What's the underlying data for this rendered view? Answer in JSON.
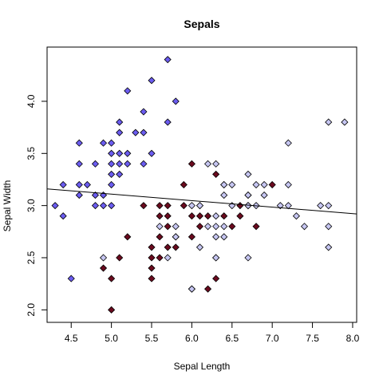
{
  "chart_data": {
    "type": "scatter",
    "title": "Sepals",
    "xlabel": "Sepal Length",
    "ylabel": "Sepal Width",
    "xlim": [
      4.2,
      8.05
    ],
    "ylim": [
      1.88,
      4.52
    ],
    "x_ticks": [
      "4.5",
      "5.0",
      "5.5",
      "6.0",
      "6.5",
      "7.0",
      "7.5",
      "8.0"
    ],
    "y_ticks": [
      "2.0",
      "2.5",
      "3.0",
      "3.5",
      "4.0"
    ],
    "grid": false,
    "legend": "none",
    "regression_line": {
      "x": [
        4.2,
        8.05
      ],
      "y": [
        3.16,
        2.92
      ]
    },
    "series": [
      {
        "color": "#6b5cf0",
        "points": [
          [
            4.3,
            3.0
          ],
          [
            4.4,
            2.9
          ],
          [
            4.4,
            3.2
          ],
          [
            4.5,
            2.3
          ],
          [
            4.6,
            3.1
          ],
          [
            4.6,
            3.2
          ],
          [
            4.6,
            3.4
          ],
          [
            4.6,
            3.6
          ],
          [
            4.7,
            3.2
          ],
          [
            4.8,
            3.0
          ],
          [
            4.8,
            3.1
          ],
          [
            4.8,
            3.4
          ],
          [
            4.9,
            3.0
          ],
          [
            4.9,
            3.1
          ],
          [
            4.9,
            3.6
          ],
          [
            5.0,
            3.0
          ],
          [
            5.0,
            3.2
          ],
          [
            5.0,
            3.3
          ],
          [
            5.0,
            3.4
          ],
          [
            5.0,
            3.5
          ],
          [
            5.0,
            3.6
          ],
          [
            5.1,
            3.3
          ],
          [
            5.1,
            3.4
          ],
          [
            5.1,
            3.5
          ],
          [
            5.1,
            3.7
          ],
          [
            5.1,
            3.8
          ],
          [
            5.2,
            3.4
          ],
          [
            5.2,
            3.5
          ],
          [
            5.2,
            4.1
          ],
          [
            5.3,
            3.7
          ],
          [
            5.4,
            3.4
          ],
          [
            5.4,
            3.7
          ],
          [
            5.4,
            3.9
          ],
          [
            5.5,
            3.5
          ],
          [
            5.5,
            4.2
          ],
          [
            5.7,
            3.8
          ],
          [
            5.7,
            4.4
          ],
          [
            5.8,
            4.0
          ]
        ]
      },
      {
        "color": "#6a0a1e",
        "points": [
          [
            4.9,
            2.4
          ],
          [
            5.0,
            2.0
          ],
          [
            5.0,
            2.3
          ],
          [
            5.1,
            2.5
          ],
          [
            5.2,
            2.7
          ],
          [
            5.4,
            3.0
          ],
          [
            5.5,
            2.3
          ],
          [
            5.5,
            2.4
          ],
          [
            5.5,
            2.5
          ],
          [
            5.5,
            2.6
          ],
          [
            5.6,
            2.5
          ],
          [
            5.6,
            2.7
          ],
          [
            5.6,
            2.9
          ],
          [
            5.6,
            3.0
          ],
          [
            5.7,
            2.6
          ],
          [
            5.7,
            2.8
          ],
          [
            5.7,
            2.9
          ],
          [
            5.7,
            3.0
          ],
          [
            5.8,
            2.6
          ],
          [
            5.8,
            2.7
          ],
          [
            5.9,
            3.0
          ],
          [
            5.9,
            3.2
          ],
          [
            6.0,
            2.2
          ],
          [
            6.0,
            2.7
          ],
          [
            6.0,
            2.9
          ],
          [
            6.0,
            3.4
          ],
          [
            6.1,
            2.8
          ],
          [
            6.1,
            2.9
          ],
          [
            6.1,
            3.0
          ],
          [
            6.2,
            2.2
          ],
          [
            6.2,
            2.9
          ],
          [
            6.3,
            2.3
          ],
          [
            6.3,
            2.5
          ],
          [
            6.3,
            3.3
          ],
          [
            6.4,
            2.9
          ],
          [
            6.4,
            3.2
          ],
          [
            6.5,
            2.8
          ],
          [
            6.6,
            2.9
          ],
          [
            6.6,
            3.0
          ],
          [
            6.7,
            3.0
          ],
          [
            6.7,
            3.1
          ],
          [
            6.8,
            2.8
          ],
          [
            7.0,
            3.2
          ]
        ]
      },
      {
        "color": "#c6c6f2",
        "points": [
          [
            4.9,
            2.5
          ],
          [
            5.6,
            2.8
          ],
          [
            5.7,
            2.5
          ],
          [
            5.8,
            2.7
          ],
          [
            5.8,
            2.8
          ],
          [
            6.0,
            2.2
          ],
          [
            6.0,
            3.0
          ],
          [
            6.1,
            2.6
          ],
          [
            6.1,
            3.0
          ],
          [
            6.2,
            2.8
          ],
          [
            6.2,
            3.4
          ],
          [
            6.3,
            2.5
          ],
          [
            6.3,
            2.7
          ],
          [
            6.3,
            2.8
          ],
          [
            6.3,
            2.9
          ],
          [
            6.3,
            3.4
          ],
          [
            6.4,
            2.7
          ],
          [
            6.4,
            2.8
          ],
          [
            6.4,
            3.1
          ],
          [
            6.4,
            3.2
          ],
          [
            6.5,
            3.0
          ],
          [
            6.5,
            3.2
          ],
          [
            6.7,
            2.5
          ],
          [
            6.7,
            3.0
          ],
          [
            6.7,
            3.1
          ],
          [
            6.7,
            3.3
          ],
          [
            6.8,
            3.0
          ],
          [
            6.8,
            3.2
          ],
          [
            6.9,
            3.1
          ],
          [
            6.9,
            3.2
          ],
          [
            7.1,
            3.0
          ],
          [
            7.2,
            3.0
          ],
          [
            7.2,
            3.2
          ],
          [
            7.2,
            3.6
          ],
          [
            7.3,
            2.9
          ],
          [
            7.4,
            2.8
          ],
          [
            7.6,
            3.0
          ],
          [
            7.7,
            2.6
          ],
          [
            7.7,
            2.8
          ],
          [
            7.7,
            3.0
          ],
          [
            7.7,
            3.8
          ],
          [
            7.9,
            3.8
          ]
        ]
      }
    ]
  }
}
